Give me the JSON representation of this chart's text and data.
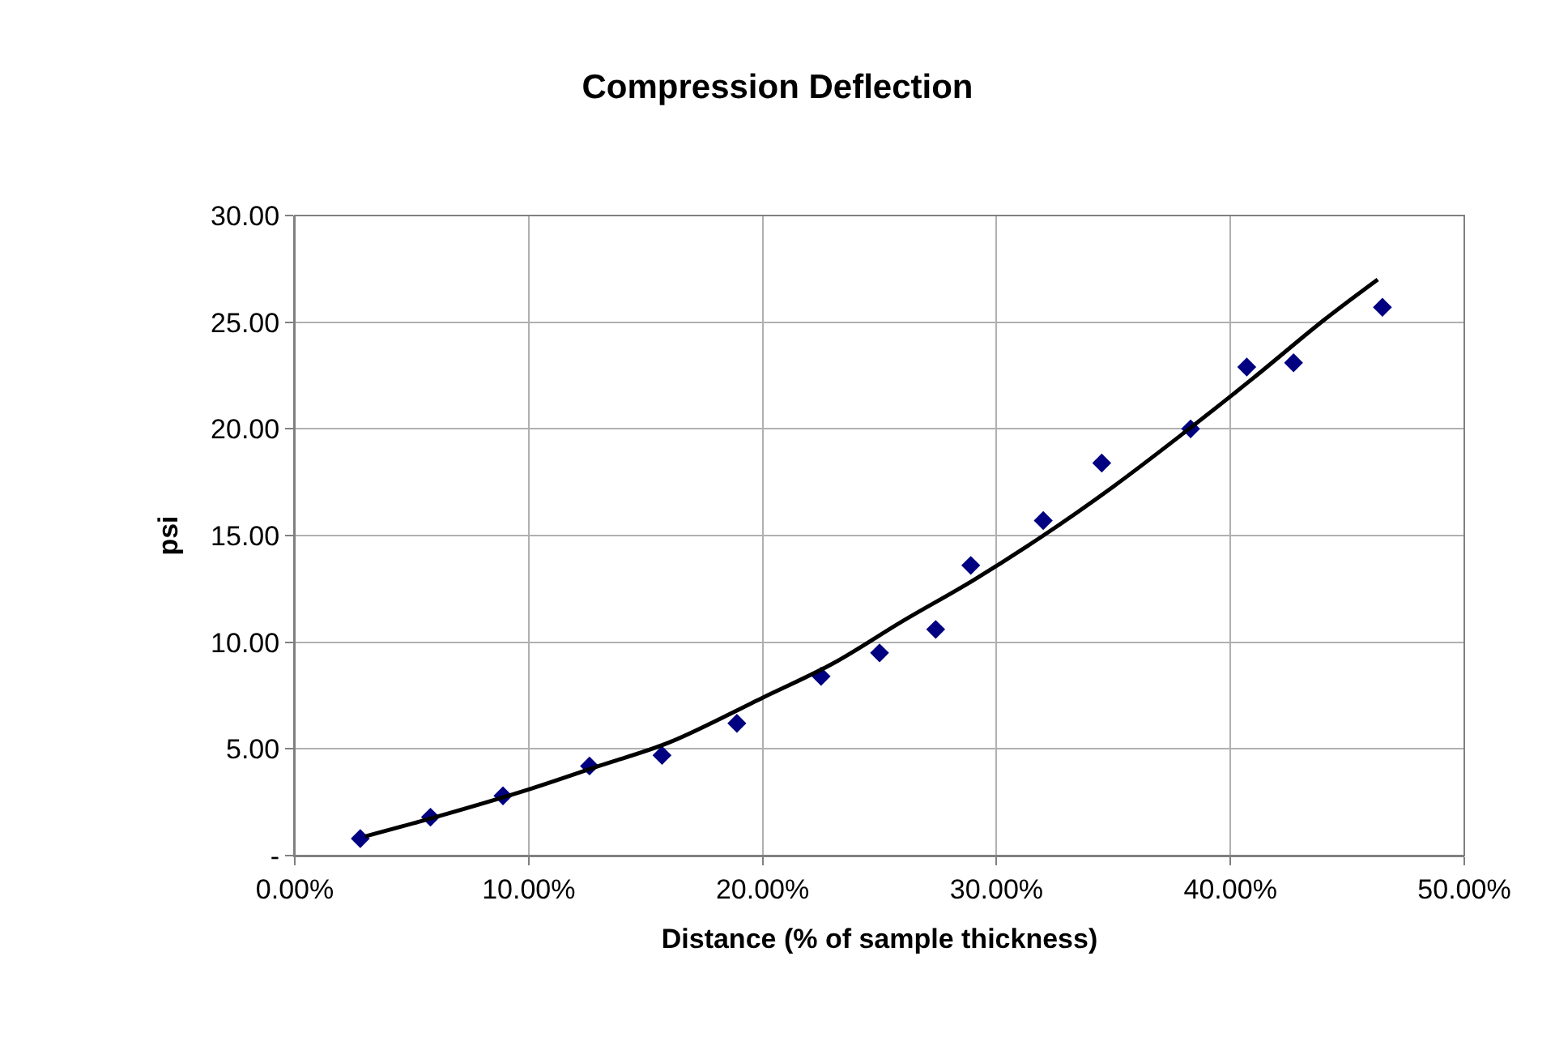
{
  "chart_data": {
    "type": "scatter",
    "title": "Compression Deflection",
    "xlabel": "Distance (% of sample thickness)",
    "ylabel": "psi",
    "xlim": [
      0,
      50
    ],
    "xticks": [
      {
        "value": 0,
        "label": "0.00%"
      },
      {
        "value": 10,
        "label": "10.00%"
      },
      {
        "value": 20,
        "label": "20.00%"
      },
      {
        "value": 30,
        "label": "30.00%"
      },
      {
        "value": 40,
        "label": "40.00%"
      },
      {
        "value": 50,
        "label": "50.00%"
      }
    ],
    "ylim": [
      0,
      30
    ],
    "yticks": [
      {
        "value": 0,
        "label": "-"
      },
      {
        "value": 5,
        "label": "5.00"
      },
      {
        "value": 10,
        "label": "10.00"
      },
      {
        "value": 15,
        "label": "15.00"
      },
      {
        "value": 20,
        "label": "20.00"
      },
      {
        "value": 25,
        "label": "25.00"
      },
      {
        "value": 30,
        "label": "30.00"
      }
    ],
    "grid": true,
    "marker": "diamond",
    "series": [
      {
        "color": "#000080",
        "x": [
          2.8,
          5.8,
          8.9,
          12.6,
          15.7,
          18.9,
          22.5,
          25.0,
          27.4,
          28.9,
          32.0,
          34.5,
          38.3,
          40.7,
          42.7,
          46.5
        ],
        "values": [
          0.8,
          1.8,
          2.8,
          4.2,
          4.7,
          6.2,
          8.4,
          9.5,
          10.6,
          13.6,
          15.7,
          18.4,
          20.0,
          22.9,
          23.1,
          25.7
        ]
      },
      {
        "type": "line",
        "color": "#000000",
        "marker": "none",
        "x": [
          3,
          6,
          10,
          13,
          16,
          20,
          23,
          26,
          29,
          32,
          35,
          38,
          41,
          44,
          46.3
        ],
        "values": [
          0.9,
          1.8,
          3.1,
          4.2,
          5.3,
          7.4,
          9.0,
          11.0,
          12.9,
          15.0,
          17.3,
          19.8,
          22.4,
          25.1,
          27.0
        ]
      }
    ]
  }
}
